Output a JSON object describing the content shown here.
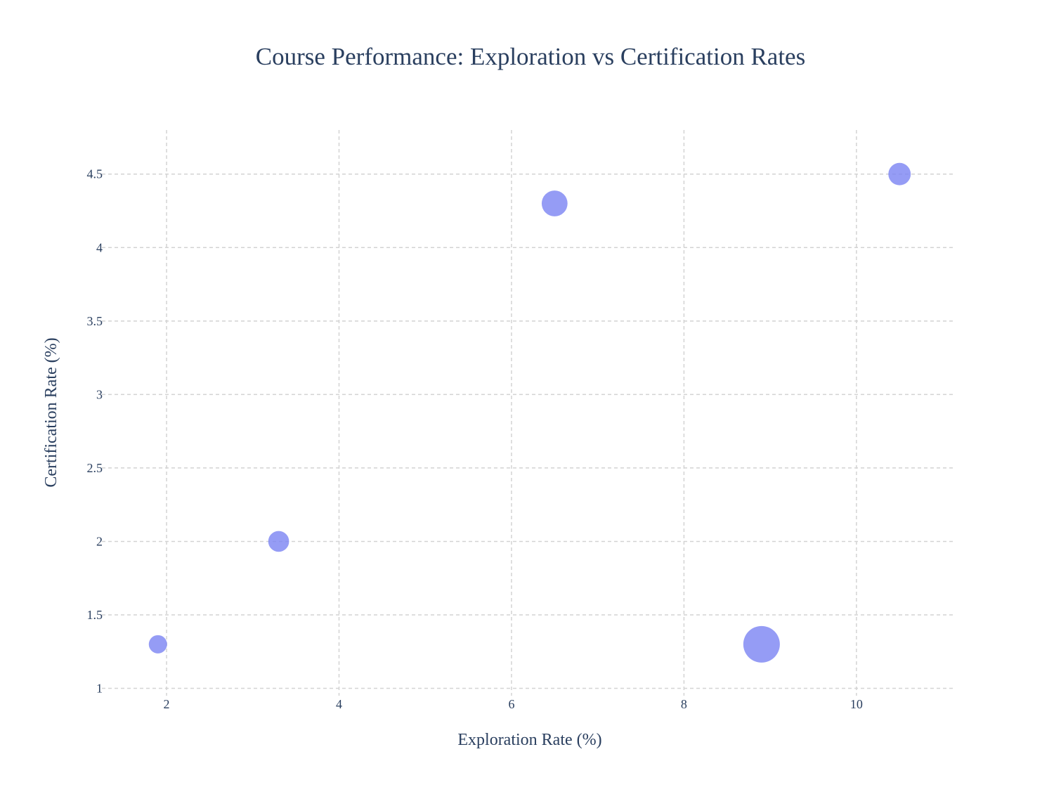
{
  "chart_data": {
    "type": "scatter",
    "title": "Course Performance: Exploration vs Certification Rates",
    "xlabel": "Exploration Rate (%)",
    "ylabel": "Certification Rate (%)",
    "xlim": [
      1.25,
      11.15
    ],
    "ylim": [
      0.95,
      4.8
    ],
    "x_ticks": [
      2,
      4,
      6,
      8,
      10
    ],
    "x_tick_labels": [
      "2",
      "4",
      "6",
      "8",
      "10"
    ],
    "y_ticks": [
      1,
      1.5,
      2,
      2.5,
      3,
      3.5,
      4,
      4.5
    ],
    "y_tick_labels": [
      "1",
      "1.5",
      "2",
      "2.5",
      "3",
      "3.5",
      "4",
      "4.5"
    ],
    "grid": true,
    "marker_color": "#7b83f2",
    "marker_opacity": 0.8,
    "points": [
      {
        "x": 1.9,
        "y": 1.3,
        "size": 1.0
      },
      {
        "x": 3.3,
        "y": 2.0,
        "size": 1.3
      },
      {
        "x": 6.5,
        "y": 4.3,
        "size": 2.0
      },
      {
        "x": 8.9,
        "y": 1.3,
        "size": 4.0
      },
      {
        "x": 10.5,
        "y": 4.5,
        "size": 1.5
      }
    ]
  }
}
